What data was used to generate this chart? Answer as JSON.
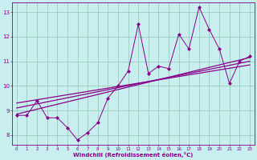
{
  "xlabel": "Windchill (Refroidissement éolien,°C)",
  "xlim": [
    -0.5,
    23.5
  ],
  "ylim": [
    7.6,
    13.4
  ],
  "xticks": [
    0,
    1,
    2,
    3,
    4,
    5,
    6,
    7,
    8,
    9,
    10,
    11,
    12,
    13,
    14,
    15,
    16,
    17,
    18,
    19,
    20,
    21,
    22,
    23
  ],
  "yticks": [
    8,
    9,
    10,
    11,
    12,
    13
  ],
  "bg_color": "#c8eef0",
  "line_color": "#880088",
  "grid_color": "#99ccbb",
  "data_x": [
    0,
    1,
    2,
    3,
    4,
    5,
    6,
    7,
    8,
    9,
    10,
    11,
    12,
    13,
    14,
    15,
    16,
    17,
    18,
    19,
    20,
    21,
    22,
    23
  ],
  "data_y": [
    8.8,
    8.8,
    9.4,
    8.7,
    8.7,
    8.3,
    7.8,
    8.1,
    8.5,
    9.5,
    10.0,
    10.6,
    12.5,
    10.5,
    10.8,
    10.7,
    12.1,
    11.5,
    13.2,
    12.3,
    11.5,
    10.1,
    11.0,
    11.2
  ],
  "trend_lines": [
    {
      "x": [
        0,
        23
      ],
      "y": [
        8.85,
        11.15
      ]
    },
    {
      "x": [
        0,
        23
      ],
      "y": [
        9.1,
        11.0
      ]
    },
    {
      "x": [
        0,
        23
      ],
      "y": [
        9.3,
        10.85
      ]
    }
  ]
}
